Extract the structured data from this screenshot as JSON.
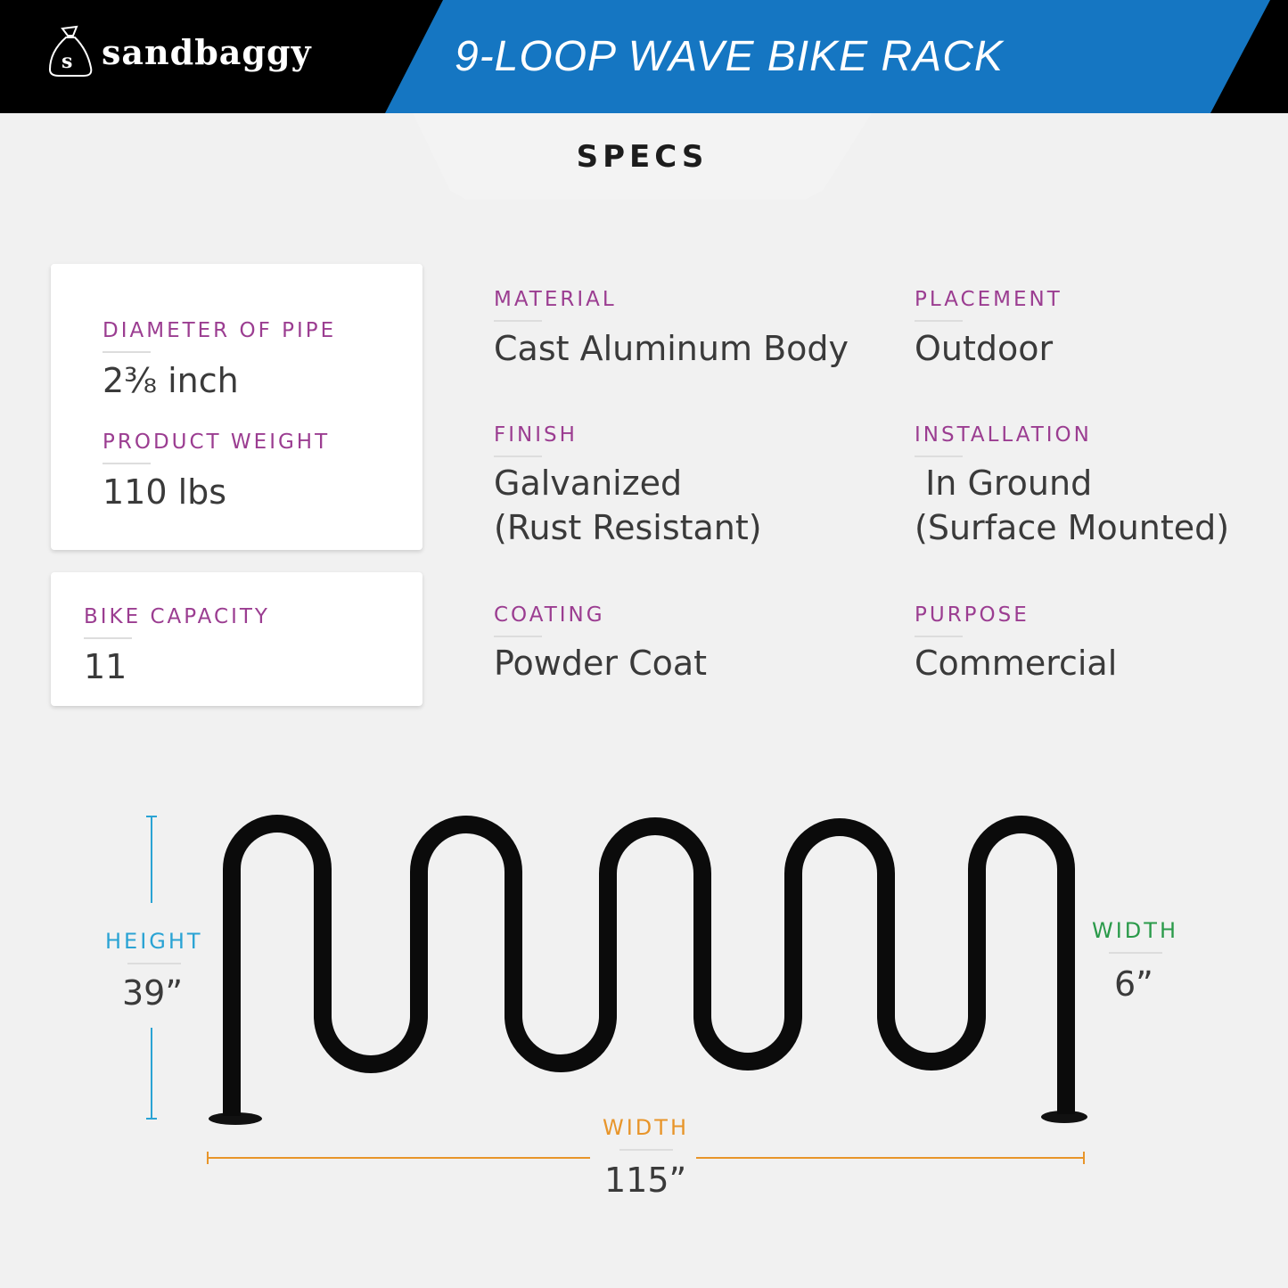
{
  "header": {
    "brand": "sandbaggy",
    "title": "9-LOOP WAVE BIKE RACK",
    "logo_icon": "sandbag-icon",
    "colors": {
      "header_bg": "#000000",
      "title_band": "#1576c2"
    }
  },
  "section": {
    "title": "SPECS"
  },
  "cards": {
    "diameter": {
      "label": "DIAMETER OF PIPE",
      "value": "2⅜ inch"
    },
    "weight": {
      "label": "PRODUCT WEIGHT",
      "value": "110 lbs"
    },
    "capacity": {
      "label": "BIKE CAPACITY",
      "value": "11"
    }
  },
  "specs": {
    "material": {
      "label": "MATERIAL",
      "value": "Cast Aluminum Body"
    },
    "placement": {
      "label": "PLACEMENT",
      "value": "Outdoor"
    },
    "finish": {
      "label": "FINISH",
      "value": "Galvanized",
      "value2": "(Rust Resistant)"
    },
    "installation": {
      "label": "INSTALLATION",
      "value": " In Ground",
      "value2": "(Surface Mounted)"
    },
    "coating": {
      "label": "COATING",
      "value": "Powder Coat"
    },
    "purpose": {
      "label": "PURPOSE",
      "value": "Commercial"
    }
  },
  "dimensions": {
    "height": {
      "label": "HEIGHT",
      "value": "39”",
      "color": "#2aa3d4"
    },
    "depth": {
      "label": "WIDTH",
      "value": "6”",
      "color": "#2a9a4a"
    },
    "width": {
      "label": "WIDTH",
      "value": "115”",
      "color": "#e8952a"
    }
  },
  "label_color": "#9b3d91"
}
